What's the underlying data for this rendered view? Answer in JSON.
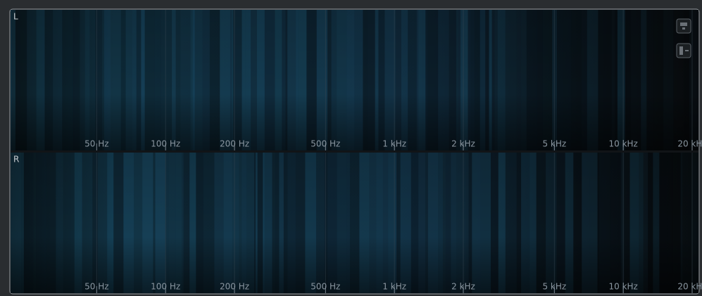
{
  "axis": {
    "scale": "log",
    "xlim": [
      20,
      20000
    ],
    "ticks": [
      {
        "value": 50,
        "label": "50 Hz"
      },
      {
        "value": 100,
        "label": "100 Hz"
      },
      {
        "value": 200,
        "label": "200 Hz"
      },
      {
        "value": 500,
        "label": "500 Hz"
      },
      {
        "value": 1000,
        "label": "1 kHz"
      },
      {
        "value": 2000,
        "label": "2 kHz"
      },
      {
        "value": 5000,
        "label": "5 kHz"
      },
      {
        "value": 10000,
        "label": "10 kHz"
      },
      {
        "value": 20000,
        "label": "20 kHz"
      }
    ]
  },
  "panels": [
    {
      "label": "L"
    },
    {
      "label": "R"
    }
  ]
}
